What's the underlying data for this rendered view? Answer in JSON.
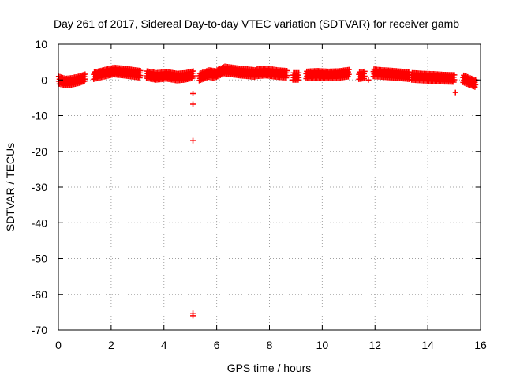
{
  "chart_data": {
    "type": "scatter",
    "title": "Day 261 of 2017, Sidereal Day-to-day VTEC variation (SDTVAR) for receiver gamb",
    "xlabel": "GPS time / hours",
    "ylabel": "SDTVAR / TECUs",
    "xlim": [
      0,
      16
    ],
    "ylim": [
      -70,
      10
    ],
    "xticks": [
      0,
      2,
      4,
      6,
      8,
      10,
      12,
      14,
      16
    ],
    "yticks": [
      10,
      0,
      -10,
      -20,
      -30,
      -40,
      -50,
      -60,
      -70
    ],
    "grid": true,
    "marker": "+",
    "marker_color": "#ff0000",
    "series": [
      {
        "name": "SDTVAR",
        "segments": [
          {
            "x": [
              0.0,
              0.25,
              0.5,
              0.75,
              1.0
            ],
            "y": [
              0.0,
              -0.6,
              -0.4,
              0.0,
              0.6
            ]
          },
          {
            "x": [
              1.35,
              1.7,
              2.1,
              2.5,
              2.9,
              3.1
            ],
            "y": [
              1.2,
              1.8,
              2.5,
              2.2,
              1.8,
              1.6
            ]
          },
          {
            "x": [
              3.35,
              3.7,
              4.1,
              4.5,
              4.8,
              5.1
            ],
            "y": [
              1.5,
              1.0,
              1.3,
              0.8,
              1.0,
              1.5
            ]
          },
          {
            "x": [
              5.35,
              5.7,
              5.95
            ],
            "y": [
              0.8,
              1.8,
              1.5
            ]
          },
          {
            "x": [
              6.0,
              6.3,
              6.6,
              6.9,
              7.2,
              7.45
            ],
            "y": [
              1.8,
              2.8,
              2.5,
              2.2,
              2.0,
              1.8
            ]
          },
          {
            "x": [
              7.5,
              7.9,
              8.3,
              8.65
            ],
            "y": [
              2.0,
              2.2,
              1.8,
              1.6
            ]
          },
          {
            "x": [
              8.9,
              9.1
            ],
            "y": [
              1.0,
              1.0
            ]
          },
          {
            "x": [
              9.4,
              9.8,
              10.2,
              10.6,
              11.0
            ],
            "y": [
              1.4,
              1.6,
              1.4,
              1.5,
              1.9
            ]
          },
          {
            "x": [
              11.4,
              11.6
            ],
            "y": [
              1.2,
              1.4
            ]
          },
          {
            "x": [
              11.95,
              12.3,
              12.7,
              13.0,
              13.3
            ],
            "y": [
              2.0,
              1.8,
              1.6,
              1.4,
              1.2
            ]
          },
          {
            "x": [
              13.4,
              13.8,
              14.2,
              14.6,
              15.0
            ],
            "y": [
              1.0,
              0.8,
              0.7,
              0.5,
              0.4
            ]
          },
          {
            "x": [
              15.35,
              15.55,
              15.8
            ],
            "y": [
              0.3,
              -0.3,
              -1.0
            ]
          }
        ],
        "outliers": [
          {
            "x": 5.1,
            "y": -3.8
          },
          {
            "x": 5.1,
            "y": -6.8
          },
          {
            "x": 5.1,
            "y": -17.0
          },
          {
            "x": 5.1,
            "y": -65.3
          },
          {
            "x": 5.1,
            "y": -66.0
          },
          {
            "x": 11.75,
            "y": 0.0
          },
          {
            "x": 15.05,
            "y": -3.5
          }
        ]
      }
    ]
  }
}
